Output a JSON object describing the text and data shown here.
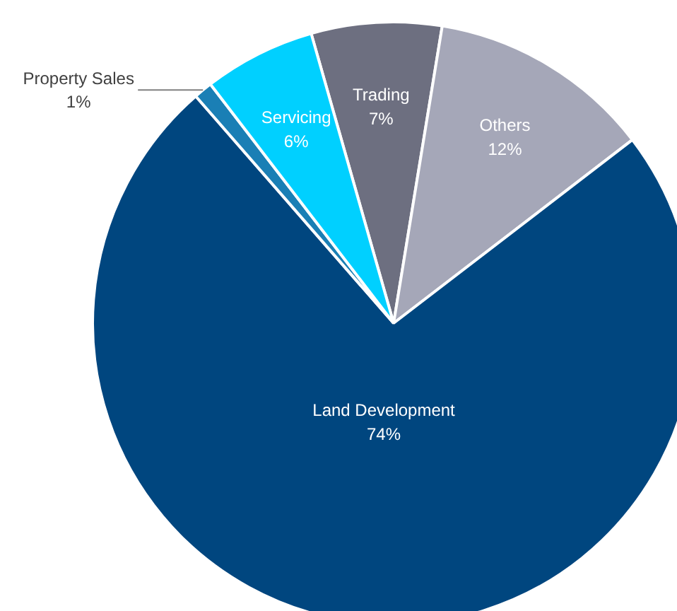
{
  "chart_data": {
    "type": "pie",
    "categories": [
      "Trading",
      "Others",
      "Land Development",
      "Property Sales",
      "Servicing"
    ],
    "values": [
      7,
      12,
      74,
      1,
      6
    ],
    "colors": [
      "#6d6f80",
      "#a5a7b8",
      "#00467f",
      "#1a7fb5",
      "#00d0ff"
    ],
    "value_labels": [
      "7%",
      "12%",
      "74%",
      "1%",
      "6%"
    ]
  }
}
